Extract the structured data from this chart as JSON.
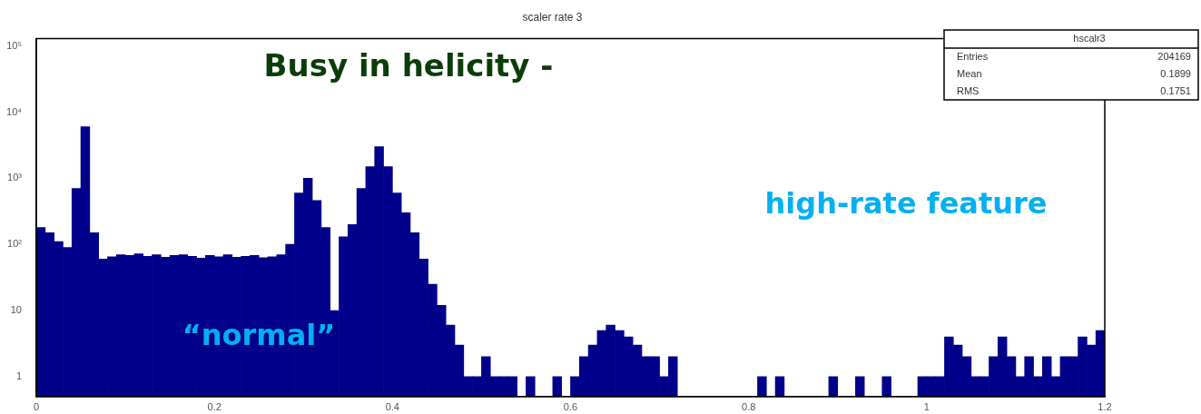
{
  "chart_data": {
    "type": "histogram",
    "title": "scaler rate 3",
    "annotations": [
      "Busy in helicity -",
      "high-rate feature",
      "“normal”",
      "hscalr3",
      "Entries",
      "204169",
      "Mean",
      "0.1899",
      "RMS",
      "0.1751"
    ],
    "bins": [
      0,
      0.01,
      0.02,
      0.03,
      0.04,
      0.05,
      0.06,
      0.07,
      0.08,
      0.09,
      0.1,
      0.11,
      0.12,
      0.13,
      0.14,
      0.15,
      0.16,
      0.17,
      0.18,
      0.19,
      0.2,
      0.21,
      0.22,
      0.23,
      0.24,
      0.25,
      0.26,
      0.27,
      0.28,
      0.29,
      0.3,
      0.31,
      0.32,
      0.33,
      0.34,
      0.35,
      0.36,
      0.37,
      0.38,
      0.39,
      0.4,
      0.41,
      0.42,
      0.43,
      0.44,
      0.45,
      0.46,
      0.47,
      0.48,
      0.49,
      0.5,
      0.51,
      0.52,
      0.53,
      0.54,
      0.55,
      0.56,
      0.57,
      0.58,
      0.59,
      0.6,
      0.61,
      0.62,
      0.63,
      0.64,
      0.65,
      0.66,
      0.67,
      0.68,
      0.69,
      0.7,
      0.71,
      0.72,
      0.73,
      0.74,
      0.75,
      0.76,
      0.77,
      0.78,
      0.79,
      0.8,
      0.81,
      0.82,
      0.83,
      0.84,
      0.85,
      0.86,
      0.87,
      0.88,
      0.89,
      0.9,
      0.91,
      0.92,
      0.93,
      0.94,
      0.95,
      0.96,
      0.97,
      0.98,
      0.99,
      1,
      1.01,
      1.02,
      1.03,
      1.04,
      1.05,
      1.06,
      1.07,
      1.08,
      1.09,
      1.1,
      1.11,
      1.12,
      1.13,
      1.14,
      1.15,
      1.16,
      1.17,
      1.18,
      1.19,
      1.2
    ],
    "values": [
      180,
      150,
      110,
      90,
      700,
      6000,
      150,
      60,
      65,
      70,
      68,
      72,
      66,
      70,
      64,
      68,
      70,
      66,
      62,
      68,
      65,
      70,
      64,
      66,
      68,
      63,
      65,
      70,
      100,
      600,
      1000,
      460,
      180,
      10,
      130,
      200,
      700,
      1500,
      3000,
      1500,
      600,
      300,
      150,
      60,
      25,
      12,
      6,
      3,
      1,
      1,
      2,
      1,
      1,
      1,
      null,
      1,
      null,
      null,
      1,
      null,
      1,
      2,
      3,
      5,
      6,
      5,
      4,
      3,
      2,
      2,
      1,
      2,
      null,
      null,
      null,
      null,
      null,
      null,
      null,
      null,
      null,
      1,
      null,
      1,
      null,
      null,
      null,
      null,
      null,
      1,
      null,
      null,
      1,
      null,
      null,
      1,
      null,
      null,
      null,
      1,
      1,
      1,
      4,
      3,
      2,
      1,
      1,
      2,
      4,
      2,
      1,
      2,
      1,
      2,
      1,
      2,
      2,
      4,
      3,
      5
    ],
    "color": "#00008b",
    "log": "y",
    "xlim": [
      0,
      1.2
    ],
    "xticks": [
      0,
      0.2,
      0.4,
      0.6,
      0.8,
      1,
      1.2
    ],
    "ylim": [
      0.5,
      130000
    ],
    "yticks": [
      1,
      10,
      {
        "value": 100,
        "label": "10²"
      },
      {
        "value": 1000,
        "label": "10³"
      },
      {
        "value": 10000,
        "label": "10⁴"
      },
      {
        "value": 100000,
        "label": "10⁵"
      }
    ]
  }
}
